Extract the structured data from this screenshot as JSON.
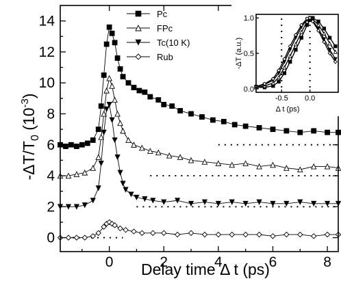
{
  "chart_data": [
    {
      "type": "scatter",
      "xlabel": "Delay time Δ t (ps)",
      "ylabel": "-ΔT/T₀ (10⁻³)",
      "xlim": [
        -1.8,
        8.4
      ],
      "ylim": [
        -0.9,
        15.0
      ],
      "xticks": [
        0,
        2,
        4,
        6,
        8
      ],
      "yticks": [
        0,
        2,
        4,
        6,
        8,
        10,
        12,
        14
      ],
      "legend_position": "top-center",
      "series": [
        {
          "name": "Pc",
          "marker": "filled-square",
          "x": [
            -1.8,
            -1.6,
            -1.4,
            -1.2,
            -1.0,
            -0.8,
            -0.6,
            -0.4,
            -0.3,
            -0.2,
            -0.1,
            0.0,
            0.1,
            0.2,
            0.3,
            0.4,
            0.5,
            0.7,
            0.9,
            1.1,
            1.3,
            1.5,
            1.8,
            2.0,
            2.3,
            2.6,
            3.0,
            3.4,
            3.8,
            4.2,
            4.6,
            5.0,
            5.5,
            6.0,
            6.5,
            7.0,
            7.5,
            8.0,
            8.4
          ],
          "y": [
            6.0,
            5.9,
            6.0,
            5.9,
            6.0,
            6.1,
            6.3,
            7.0,
            8.5,
            10.5,
            12.5,
            13.6,
            13.2,
            12.6,
            11.6,
            10.9,
            10.4,
            10.0,
            9.7,
            9.5,
            9.4,
            9.1,
            8.9,
            8.6,
            8.5,
            8.2,
            8.0,
            7.8,
            7.6,
            7.5,
            7.3,
            7.2,
            7.1,
            7.0,
            6.9,
            6.8,
            6.9,
            6.8,
            6.8
          ]
        },
        {
          "name": "FPc",
          "marker": "open-triangle-up",
          "x": [
            -1.8,
            -1.5,
            -1.2,
            -0.9,
            -0.6,
            -0.4,
            -0.3,
            -0.2,
            -0.1,
            0.0,
            0.1,
            0.2,
            0.3,
            0.4,
            0.5,
            0.7,
            0.9,
            1.2,
            1.5,
            1.8,
            2.2,
            2.6,
            3.0,
            3.5,
            4.0,
            4.5,
            5.0,
            5.5,
            6.0,
            6.5,
            7.0,
            7.5,
            8.0,
            8.4
          ],
          "y": [
            4.0,
            4.0,
            4.1,
            4.2,
            4.5,
            5.2,
            6.5,
            8.0,
            9.5,
            10.3,
            9.8,
            8.9,
            8.0,
            7.4,
            6.9,
            6.3,
            6.0,
            5.8,
            5.6,
            5.5,
            5.3,
            5.2,
            5.0,
            4.9,
            4.8,
            4.7,
            4.8,
            4.6,
            4.7,
            4.5,
            4.4,
            4.6,
            4.6,
            4.5
          ]
        },
        {
          "name": "Tc(10 K)",
          "marker": "filled-triangle-down",
          "x": [
            -1.8,
            -1.5,
            -1.2,
            -0.9,
            -0.6,
            -0.4,
            -0.3,
            -0.2,
            -0.1,
            0.0,
            0.1,
            0.2,
            0.3,
            0.4,
            0.5,
            0.6,
            0.8,
            1.0,
            1.3,
            1.6,
            2.0,
            2.5,
            3.0,
            3.5,
            4.0,
            4.5,
            5.0,
            5.5,
            6.0,
            6.5,
            7.0,
            7.5,
            8.0,
            8.4
          ],
          "y": [
            2.0,
            2.0,
            2.0,
            2.1,
            2.4,
            3.2,
            4.8,
            6.8,
            8.3,
            8.6,
            7.6,
            6.3,
            5.2,
            4.2,
            3.5,
            3.1,
            2.8,
            2.6,
            2.5,
            2.4,
            2.3,
            2.4,
            2.2,
            2.3,
            2.2,
            2.3,
            2.2,
            2.3,
            2.2,
            2.2,
            2.3,
            2.2,
            2.2,
            2.2
          ]
        },
        {
          "name": "Rub",
          "marker": "open-diamond",
          "x": [
            -1.8,
            -1.5,
            -1.2,
            -0.9,
            -0.6,
            -0.4,
            -0.2,
            -0.1,
            0.0,
            0.1,
            0.2,
            0.4,
            0.6,
            0.9,
            1.2,
            1.6,
            2.0,
            2.5,
            3.0,
            3.5,
            4.0,
            4.5,
            5.0,
            5.5,
            6.0,
            6.5,
            7.0,
            7.5,
            8.0,
            8.4
          ],
          "y": [
            0.0,
            0.0,
            0.0,
            0.0,
            0.1,
            0.3,
            0.7,
            0.9,
            1.0,
            0.9,
            0.8,
            0.6,
            0.5,
            0.4,
            0.3,
            0.3,
            0.3,
            0.2,
            0.3,
            0.2,
            0.2,
            0.2,
            0.2,
            0.2,
            0.1,
            0.2,
            0.2,
            0.1,
            0.2,
            0.2
          ]
        }
      ]
    },
    {
      "type": "line",
      "position": "inset-top-right",
      "xlabel": "Δ t (ps)",
      "ylabel": "-ΔT (a.u.)",
      "xlim": [
        -0.95,
        0.5
      ],
      "ylim": [
        -0.05,
        1.05
      ],
      "xticks": [
        -0.5,
        0.0
      ],
      "yticks": [
        0.0,
        0.5,
        1.0
      ],
      "xtick_labels": [
        "-0.5",
        "0.0"
      ],
      "ytick_labels": [
        "0.0",
        "0.5",
        "1.0"
      ],
      "series": [
        {
          "marker": "filled-square",
          "x": [
            -0.95,
            -0.8,
            -0.65,
            -0.55,
            -0.45,
            -0.35,
            -0.25,
            -0.15,
            -0.05,
            0.0,
            0.05,
            0.15,
            0.25,
            0.35,
            0.45
          ],
          "y": [
            0.02,
            0.02,
            0.04,
            0.1,
            0.22,
            0.38,
            0.55,
            0.72,
            0.9,
            0.97,
            1.0,
            0.95,
            0.85,
            0.72,
            0.6
          ]
        },
        {
          "marker": "open-triangle-up",
          "x": [
            -0.95,
            -0.8,
            -0.65,
            -0.55,
            -0.45,
            -0.35,
            -0.25,
            -0.15,
            -0.05,
            0.0,
            0.05,
            0.15,
            0.25,
            0.35,
            0.45
          ],
          "y": [
            0.02,
            0.04,
            0.08,
            0.16,
            0.3,
            0.46,
            0.63,
            0.8,
            0.95,
            1.0,
            0.98,
            0.9,
            0.78,
            0.64,
            0.52
          ]
        },
        {
          "marker": "filled-triangle-down",
          "x": [
            -0.95,
            -0.8,
            -0.65,
            -0.55,
            -0.45,
            -0.35,
            -0.25,
            -0.15,
            -0.05,
            0.0,
            0.05,
            0.15,
            0.25,
            0.35,
            0.45
          ],
          "y": [
            0.03,
            0.06,
            0.12,
            0.22,
            0.38,
            0.55,
            0.72,
            0.87,
            0.98,
            1.0,
            0.96,
            0.85,
            0.7,
            0.55,
            0.42
          ]
        },
        {
          "marker": "open-diamond",
          "x": [
            -0.95,
            -0.8,
            -0.65,
            -0.55,
            -0.45,
            -0.35,
            -0.25,
            -0.15,
            -0.05,
            0.0,
            0.05,
            0.15,
            0.25,
            0.35,
            0.45
          ],
          "y": [
            0.03,
            0.07,
            0.14,
            0.26,
            0.42,
            0.6,
            0.76,
            0.9,
            0.99,
            1.0,
            0.95,
            0.82,
            0.66,
            0.5,
            0.38
          ]
        }
      ]
    }
  ],
  "labels": {
    "ylabel_main": "-ΔT/T",
    "ylabel_sub": "0",
    "ylabel_unit": " (10",
    "ylabel_exp": "-3",
    "ylabel_close": ")",
    "xlabel_main": "Delay time Δ t (ps)",
    "inset_xlabel": "Δ t (ps)",
    "inset_ylabel": "-ΔT (a.u.)"
  }
}
